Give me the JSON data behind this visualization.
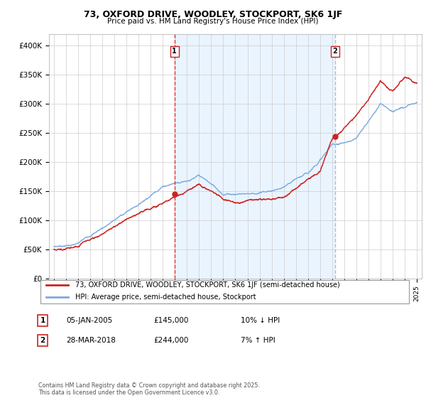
{
  "title_line1": "73, OXFORD DRIVE, WOODLEY, STOCKPORT, SK6 1JF",
  "title_line2": "Price paid vs. HM Land Registry's House Price Index (HPI)",
  "legend_line1": "73, OXFORD DRIVE, WOODLEY, STOCKPORT, SK6 1JF (semi-detached house)",
  "legend_line2": "HPI: Average price, semi-detached house, Stockport",
  "footnote": "Contains HM Land Registry data © Crown copyright and database right 2025.\nThis data is licensed under the Open Government Licence v3.0.",
  "sale1_date": "05-JAN-2005",
  "sale1_price": "£145,000",
  "sale1_hpi": "10% ↓ HPI",
  "sale2_date": "28-MAR-2018",
  "sale2_price": "£244,000",
  "sale2_hpi": "7% ↑ HPI",
  "line_color_red": "#cc2222",
  "line_color_blue": "#7aaadd",
  "vline1_color": "#dd3333",
  "vline2_color": "#aabbdd",
  "shade_color": "#ddeeff",
  "ytick_labels": [
    "£0",
    "£50K",
    "£100K",
    "£150K",
    "£200K",
    "£250K",
    "£300K",
    "£350K",
    "£400K"
  ],
  "yticks": [
    0,
    50000,
    100000,
    150000,
    200000,
    250000,
    300000,
    350000,
    400000
  ],
  "sale1_x": 2004.97,
  "sale1_y": 145000,
  "sale2_x": 2018.24,
  "sale2_y": 244000,
  "xlim_min": 1994.6,
  "xlim_max": 2025.4,
  "ylim_min": 0,
  "ylim_max": 420000
}
